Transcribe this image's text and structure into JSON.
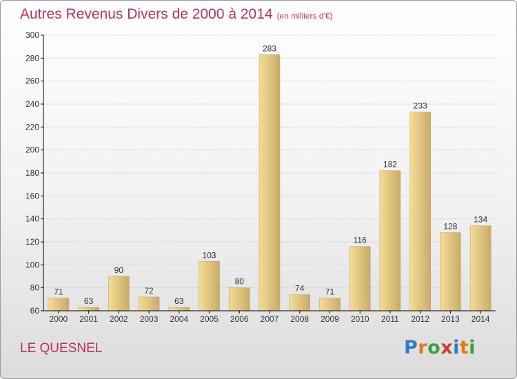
{
  "header": {
    "title": "Autres Revenus Divers de 2000 à 2014",
    "unit": "(en milliers d'€)"
  },
  "footer": {
    "place": "LE QUESNEL",
    "logo": "Proxiti",
    "logo_parts": [
      "P",
      "r",
      "o",
      "x",
      "i",
      "t",
      "i"
    ]
  },
  "colors": {
    "title": "#b8325a",
    "bar_light": "#f4dd97",
    "bar_dark": "#c8ac68",
    "grid": "#cccccc",
    "axis": "#000000"
  },
  "chart_data": {
    "type": "bar",
    "categories": [
      "2000",
      "2001",
      "2002",
      "2003",
      "2004",
      "2005",
      "2006",
      "2007",
      "2008",
      "2009",
      "2010",
      "2011",
      "2012",
      "2013",
      "2014"
    ],
    "values": [
      71,
      63,
      90,
      72,
      63,
      103,
      80,
      283,
      74,
      71,
      116,
      182,
      233,
      128,
      134
    ],
    "ylim": [
      60,
      300
    ],
    "yticks": [
      60,
      80,
      100,
      120,
      140,
      160,
      180,
      200,
      220,
      240,
      260,
      280,
      300
    ],
    "grid": true,
    "data_labels": true
  }
}
